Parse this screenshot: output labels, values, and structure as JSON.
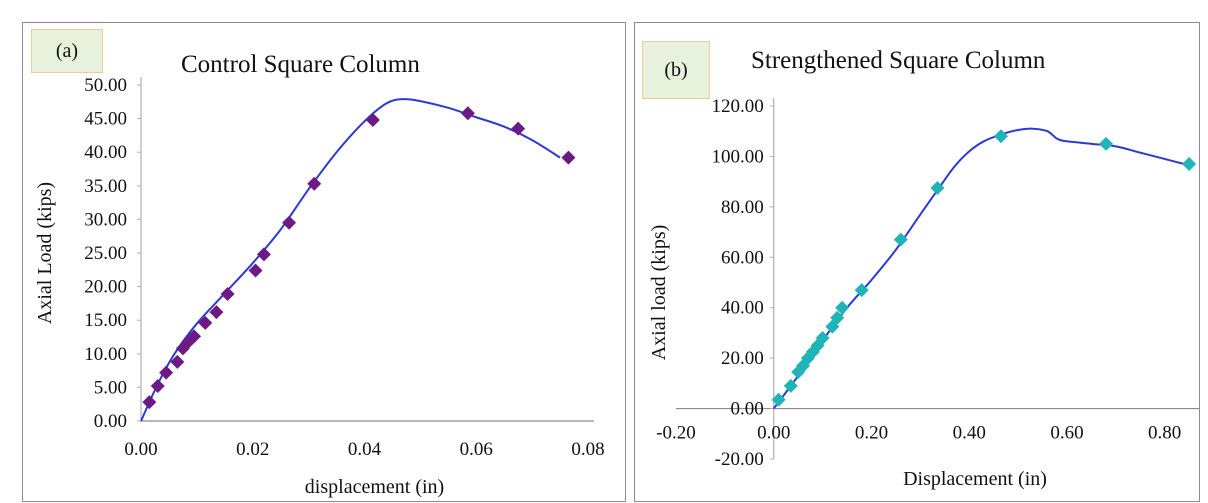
{
  "chart_data": [
    {
      "type": "line",
      "panel_tag": "(a)",
      "title": "Control Square Column",
      "xlabel": "displacement (in)",
      "ylabel": "Axial Load (kips)",
      "xlim": [
        0,
        0.08
      ],
      "ylim": [
        0,
        50
      ],
      "x_ticks": [
        "0.00",
        "0.02",
        "0.04",
        "0.06",
        "0.08"
      ],
      "y_ticks": [
        "0.00",
        "5.00",
        "10.00",
        "15.00",
        "20.00",
        "25.00",
        "30.00",
        "35.00",
        "40.00",
        "45.00",
        "50.00"
      ],
      "line_color": "#2b3ad6",
      "marker_color": "#6e1a84",
      "marker": "diamond",
      "curve": {
        "x": [
          0,
          0.003,
          0.006,
          0.01,
          0.015,
          0.02,
          0.025,
          0.03,
          0.035,
          0.04,
          0.044,
          0.047,
          0.05,
          0.055,
          0.06,
          0.065,
          0.07,
          0.075
        ],
        "y": [
          0,
          5.5,
          10,
          14.5,
          19,
          23.5,
          28.5,
          34.5,
          40,
          44.6,
          47.3,
          47.9,
          47.6,
          46.6,
          45.2,
          43.8,
          41.8,
          39.2
        ]
      },
      "points": {
        "x": [
          0.0015,
          0.003,
          0.0045,
          0.0065,
          0.0075,
          0.0085,
          0.0095,
          0.0115,
          0.0135,
          0.0155,
          0.0205,
          0.022,
          0.0265,
          0.031,
          0.0415,
          0.0585,
          0.0675,
          0.0765
        ],
        "y": [
          2.8,
          5.2,
          7.2,
          8.8,
          10.8,
          11.8,
          12.6,
          14.6,
          16.2,
          18.9,
          22.4,
          24.8,
          29.5,
          35.3,
          44.8,
          45.8,
          43.5,
          39.2
        ]
      }
    },
    {
      "type": "line",
      "panel_tag": "(b)",
      "title": "Strengthened Square  Column",
      "xlabel": "Displacement (in)",
      "ylabel": "Axial load (kips)",
      "xlim": [
        -0.2,
        0.86
      ],
      "ylim": [
        -20,
        120
      ],
      "x_ticks": [
        "-0.20",
        "0.00",
        "0.20",
        "0.40",
        "0.60",
        "0.80"
      ],
      "y_ticks": [
        "-20.00",
        "0.00",
        "20.00",
        "40.00",
        "60.00",
        "80.00",
        "100.00",
        "120.00"
      ],
      "line_color": "#2b3ad6",
      "marker_color": "#1fb5b8",
      "marker": "diamond",
      "curve": {
        "x": [
          0,
          0.05,
          0.1,
          0.15,
          0.2,
          0.25,
          0.3,
          0.34,
          0.37,
          0.4,
          0.43,
          0.47,
          0.5,
          0.53,
          0.56,
          0.58,
          0.6,
          0.65,
          0.7,
          0.75,
          0.8,
          0.85
        ],
        "y": [
          0,
          13,
          27,
          40,
          51,
          63,
          77,
          88,
          96,
          102,
          106,
          109,
          110.5,
          111,
          110,
          107,
          106,
          105,
          104,
          101.5,
          99,
          96.5
        ]
      },
      "points": {
        "x": [
          0.01,
          0.035,
          0.05,
          0.06,
          0.07,
          0.08,
          0.09,
          0.1,
          0.12,
          0.13,
          0.14,
          0.18,
          0.26,
          0.335,
          0.465,
          0.68,
          0.85
        ],
        "y": [
          3.5,
          9,
          14.5,
          17,
          20,
          22.5,
          25,
          28,
          32.5,
          36,
          40,
          47,
          67,
          87.5,
          108,
          105,
          97
        ]
      }
    }
  ]
}
